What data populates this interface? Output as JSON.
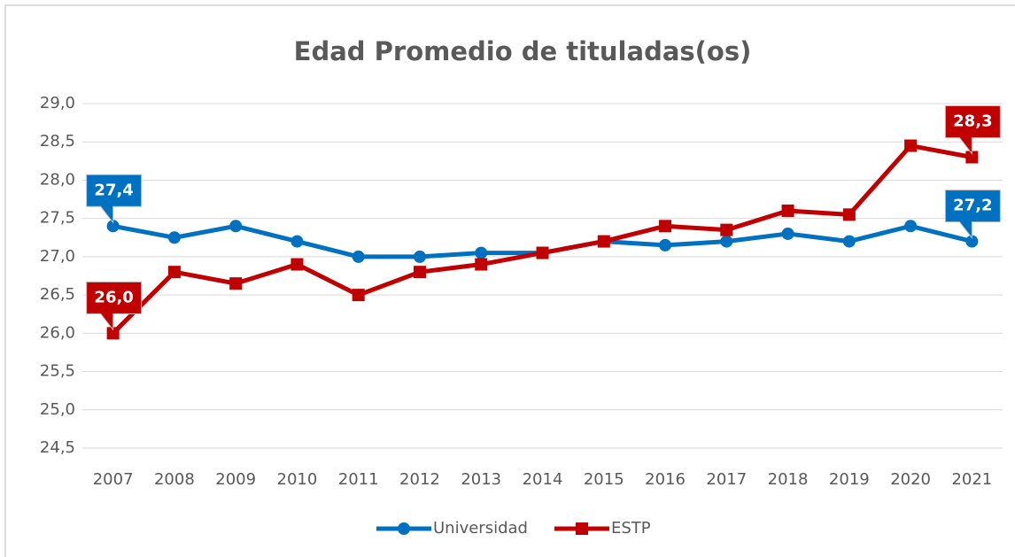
{
  "chart_data": {
    "type": "line",
    "title": "Edad Promedio de tituladas(os)",
    "categories": [
      "2007",
      "2008",
      "2009",
      "2010",
      "2011",
      "2012",
      "2013",
      "2014",
      "2015",
      "2016",
      "2017",
      "2018",
      "2019",
      "2020",
      "2021"
    ],
    "series": [
      {
        "name": "Universidad",
        "color": "#0070c0",
        "marker": "circle",
        "values": [
          27.4,
          27.25,
          27.4,
          27.2,
          27.0,
          27.0,
          27.05,
          27.05,
          27.2,
          27.15,
          27.2,
          27.3,
          27.2,
          27.4,
          27.2
        ],
        "value_labels": [
          "27,4",
          null,
          null,
          null,
          null,
          null,
          null,
          null,
          null,
          null,
          null,
          null,
          null,
          null,
          "27,2"
        ]
      },
      {
        "name": "ESTP",
        "color": "#c00000",
        "marker": "square",
        "values": [
          26.0,
          26.8,
          26.65,
          26.9,
          26.5,
          26.8,
          26.9,
          27.05,
          27.2,
          27.4,
          27.35,
          27.6,
          27.55,
          28.45,
          28.3
        ],
        "value_labels": [
          "26,0",
          null,
          null,
          null,
          null,
          null,
          null,
          null,
          null,
          null,
          null,
          null,
          null,
          null,
          "28,3"
        ]
      }
    ],
    "ylim": [
      24.5,
      29.0
    ],
    "yticks": [
      {
        "value": 24.5,
        "label": "24,5"
      },
      {
        "value": 25.0,
        "label": "25,0"
      },
      {
        "value": 25.5,
        "label": "25,5"
      },
      {
        "value": 26.0,
        "label": "26,0"
      },
      {
        "value": 26.5,
        "label": "26,5"
      },
      {
        "value": 27.0,
        "label": "27,0"
      },
      {
        "value": 27.5,
        "label": "27,5"
      },
      {
        "value": 28.0,
        "label": "28,0"
      },
      {
        "value": 28.5,
        "label": "28,5"
      },
      {
        "value": 29.0,
        "label": "29,0"
      }
    ],
    "grid": true,
    "legend": "bottom"
  }
}
